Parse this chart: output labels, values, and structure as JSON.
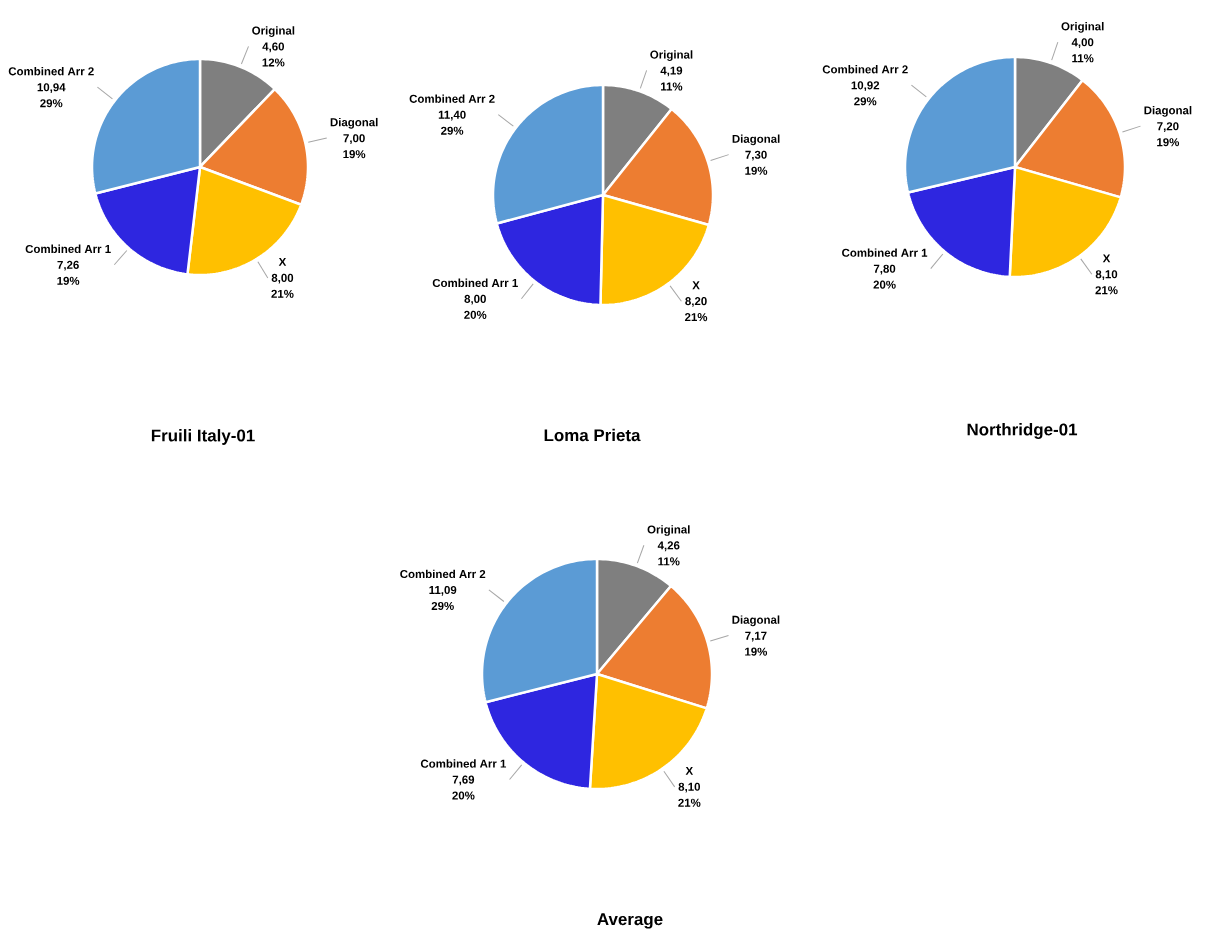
{
  "chart_data": [
    {
      "type": "pie",
      "title": "Fruili Italy-01",
      "categories": [
        "Original",
        "Diagonal",
        "X",
        "Combined Arr 1",
        "Combined Arr 2"
      ],
      "values": [
        4.6,
        7.0,
        8.0,
        7.26,
        10.94
      ],
      "value_labels": [
        "4,60",
        "7,00",
        "8,00",
        "7,26",
        "10,94"
      ],
      "annotations": [
        "12%",
        "19%",
        "21%",
        "19%",
        "29%"
      ],
      "colors": [
        "#7f7f7f",
        "#ed7d31",
        "#ffc000",
        "#2e26e0",
        "#5b9bd5"
      ]
    },
    {
      "type": "pie",
      "title": "Loma Prieta",
      "categories": [
        "Original",
        "Diagonal",
        "X",
        "Combined Arr 1",
        "Combined Arr 2"
      ],
      "values": [
        4.19,
        7.3,
        8.2,
        8.0,
        11.4
      ],
      "value_labels": [
        "4,19",
        "7,30",
        "8,20",
        "8,00",
        "11,40"
      ],
      "annotations": [
        "11%",
        "19%",
        "21%",
        "20%",
        "29%"
      ],
      "colors": [
        "#7f7f7f",
        "#ed7d31",
        "#ffc000",
        "#2e26e0",
        "#5b9bd5"
      ]
    },
    {
      "type": "pie",
      "title": "Northridge-01",
      "categories": [
        "Original",
        "Diagonal",
        "X",
        "Combined Arr 1",
        "Combined Arr 2"
      ],
      "values": [
        4.0,
        7.2,
        8.1,
        7.8,
        10.92
      ],
      "value_labels": [
        "4,00",
        "7,20",
        "8,10",
        "7,80",
        "10,92"
      ],
      "annotations": [
        "11%",
        "19%",
        "21%",
        "20%",
        "29%"
      ],
      "colors": [
        "#7f7f7f",
        "#ed7d31",
        "#ffc000",
        "#2e26e0",
        "#5b9bd5"
      ]
    },
    {
      "type": "pie",
      "title": "Average",
      "categories": [
        "Original",
        "Diagonal",
        "X",
        "Combined Arr 1",
        "Combined Arr 2"
      ],
      "values": [
        4.26,
        7.17,
        8.1,
        7.69,
        11.09
      ],
      "value_labels": [
        "4,26",
        "7,17",
        "8,10",
        "7,69",
        "11,09"
      ],
      "annotations": [
        "11%",
        "19%",
        "21%",
        "20%",
        "29%"
      ],
      "colors": [
        "#7f7f7f",
        "#ed7d31",
        "#ffc000",
        "#2e26e0",
        "#5b9bd5"
      ]
    }
  ]
}
